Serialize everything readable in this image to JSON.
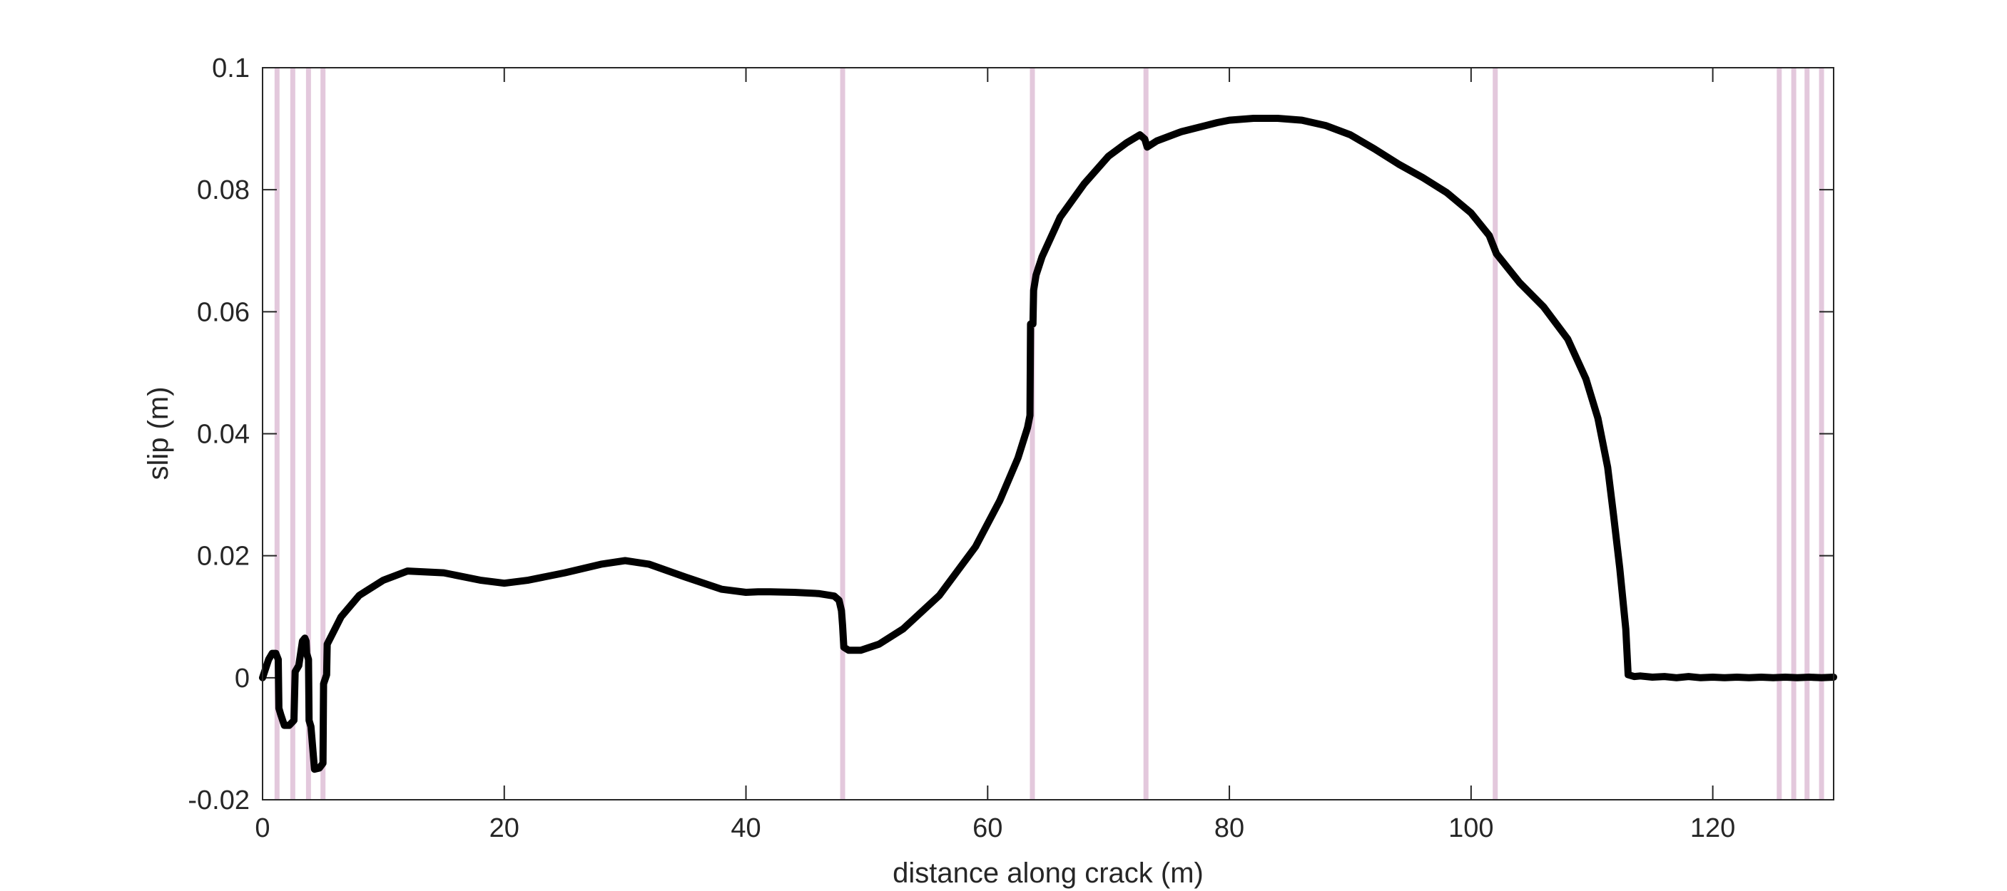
{
  "chart_data": {
    "type": "line",
    "xlabel": "distance along crack (m)",
    "ylabel": "slip (m)",
    "xlim": [
      0,
      130
    ],
    "ylim": [
      -0.02,
      0.1
    ],
    "x_ticks": [
      0,
      20,
      40,
      60,
      80,
      100,
      120
    ],
    "x_tick_labels": [
      "0",
      "20",
      "40",
      "60",
      "80",
      "100",
      "120"
    ],
    "y_ticks": [
      -0.02,
      0,
      0.02,
      0.04,
      0.06,
      0.08,
      0.1
    ],
    "y_tick_labels": [
      "-0.02",
      "0",
      "0.02",
      "0.04",
      "0.06",
      "0.08",
      "0.1"
    ],
    "grid": false,
    "box": true,
    "line_color": "#000000",
    "marker_line_color": "#e3c8dc",
    "vertical_markers_x": [
      1.2,
      2.5,
      3.8,
      5.0,
      48.0,
      63.7,
      73.1,
      102.0,
      125.5,
      126.7,
      127.8,
      129.0
    ],
    "series": [
      {
        "x": [
          0,
          0.5,
          0.8,
          1.1,
          1.3,
          1.35,
          1.5,
          1.8,
          2.2,
          2.6,
          2.7,
          3.0,
          3.3,
          3.5,
          3.6,
          3.65,
          3.8,
          3.85,
          4.0,
          4.3,
          4.7,
          5.0,
          5.05,
          5.3,
          5.35,
          6.5,
          8,
          10,
          12,
          15,
          18,
          20,
          22,
          25,
          28,
          30,
          32,
          35,
          38,
          40,
          41,
          42,
          44,
          46,
          47.3,
          47.7,
          47.9,
          48.0,
          48.1,
          48.5,
          49.5,
          51,
          53,
          56,
          59,
          61,
          62.5,
          63.3,
          63.5,
          63.55,
          63.75,
          63.8,
          64,
          64.5,
          66,
          68,
          70,
          71.5,
          72.6,
          73.0,
          73.2,
          74,
          76,
          78,
          79,
          80,
          82,
          84,
          86,
          88,
          90,
          92,
          94,
          96,
          98,
          100,
          101.5,
          102.1,
          104,
          106,
          108,
          109.5,
          110.5,
          111.3,
          111.8,
          112.3,
          112.8,
          113.0,
          113.5,
          114,
          115,
          116,
          117,
          118,
          119,
          120,
          121,
          122,
          123,
          124,
          125,
          126,
          127,
          128,
          129,
          130
        ],
        "y": [
          0,
          0.003,
          0.004,
          0.004,
          0.003,
          -0.005,
          -0.006,
          -0.0078,
          -0.0078,
          -0.007,
          0.001,
          0.002,
          0.006,
          0.0065,
          0.006,
          0.004,
          0.003,
          -0.007,
          -0.008,
          -0.015,
          -0.0148,
          -0.014,
          -0.001,
          0.0005,
          0.0055,
          0.01,
          0.0135,
          0.016,
          0.0175,
          0.0172,
          0.016,
          0.0155,
          0.016,
          0.0172,
          0.0186,
          0.0192,
          0.0186,
          0.0165,
          0.0145,
          0.014,
          0.0141,
          0.0141,
          0.014,
          0.0138,
          0.0134,
          0.0127,
          0.011,
          0.0085,
          0.005,
          0.0045,
          0.0045,
          0.0055,
          0.008,
          0.0135,
          0.0215,
          0.029,
          0.036,
          0.041,
          0.043,
          0.058,
          0.058,
          0.0635,
          0.066,
          0.069,
          0.0755,
          0.081,
          0.0855,
          0.0877,
          0.089,
          0.0883,
          0.087,
          0.088,
          0.0895,
          0.0905,
          0.091,
          0.0914,
          0.0917,
          0.0917,
          0.0914,
          0.0905,
          0.089,
          0.0867,
          0.0842,
          0.082,
          0.0795,
          0.0762,
          0.0725,
          0.0695,
          0.0648,
          0.0608,
          0.0555,
          0.049,
          0.0425,
          0.0345,
          0.0265,
          0.018,
          0.008,
          0.0005,
          0.0002,
          0.0003,
          0.0001,
          0.0002,
          0.0,
          0.0002,
          0.0,
          0.0001,
          0.0,
          0.0001,
          0.0,
          0.0001,
          0.0,
          0.0001,
          0.0,
          0.0001,
          0.0,
          0.0001
        ]
      }
    ]
  }
}
